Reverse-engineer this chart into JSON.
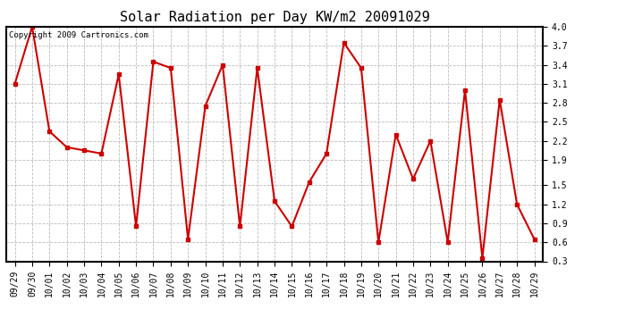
{
  "title": "Solar Radiation per Day KW/m2 20091029",
  "copyright": "Copyright 2009 Cartronics.com",
  "dates": [
    "09/29",
    "09/30",
    "10/01",
    "10/02",
    "10/03",
    "10/04",
    "10/05",
    "10/06",
    "10/07",
    "10/08",
    "10/09",
    "10/10",
    "10/11",
    "10/12",
    "10/13",
    "10/14",
    "10/15",
    "10/16",
    "10/17",
    "10/18",
    "10/19",
    "10/20",
    "10/21",
    "10/22",
    "10/23",
    "10/24",
    "10/25",
    "10/26",
    "10/27",
    "10/28",
    "10/29"
  ],
  "values": [
    3.1,
    4.0,
    2.35,
    2.1,
    2.05,
    2.0,
    3.25,
    0.85,
    3.45,
    3.35,
    0.65,
    2.75,
    3.4,
    0.85,
    3.35,
    1.25,
    0.85,
    1.55,
    2.0,
    3.75,
    3.35,
    0.6,
    2.3,
    1.6,
    2.2,
    0.6,
    3.0,
    0.35,
    2.85,
    1.2,
    0.65
  ],
  "line_color": "#cc0000",
  "marker": "s",
  "marker_size": 3,
  "line_width": 1.5,
  "bg_color": "#ffffff",
  "grid_color": "#bbbbbb",
  "ylim": [
    0.3,
    4.0
  ],
  "yticks": [
    0.3,
    0.6,
    0.9,
    1.2,
    1.5,
    1.9,
    2.2,
    2.5,
    2.8,
    3.1,
    3.4,
    3.7,
    4.0
  ],
  "title_fontsize": 11,
  "tick_fontsize": 7,
  "copyright_fontsize": 6.5
}
